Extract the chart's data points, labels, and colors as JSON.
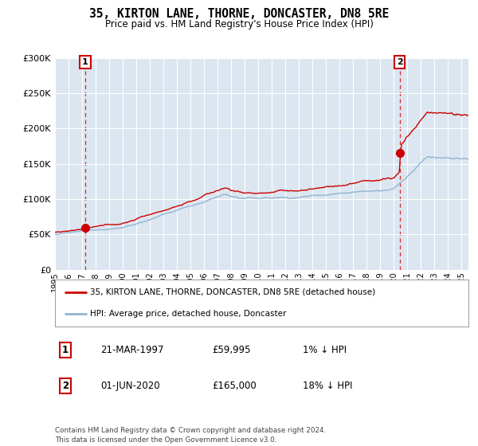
{
  "title": "35, KIRTON LANE, THORNE, DONCASTER, DN8 5RE",
  "subtitle": "Price paid vs. HM Land Registry's House Price Index (HPI)",
  "legend_line1": "35, KIRTON LANE, THORNE, DONCASTER, DN8 5RE (detached house)",
  "legend_line2": "HPI: Average price, detached house, Doncaster",
  "annotation1_label": "1",
  "annotation1_date": "21-MAR-1997",
  "annotation1_price": "£59,995",
  "annotation1_hpi": "1% ↓ HPI",
  "annotation2_label": "2",
  "annotation2_date": "01-JUN-2020",
  "annotation2_price": "£165,000",
  "annotation2_hpi": "18% ↓ HPI",
  "footer": "Contains HM Land Registry data © Crown copyright and database right 2024.\nThis data is licensed under the Open Government Licence v3.0.",
  "bg_color": "#dce6f0",
  "grid_color": "#ffffff",
  "sale1_x": 1997.23,
  "sale1_y": 59995,
  "sale2_x": 2020.42,
  "sale2_y": 165000,
  "ylim": [
    0,
    300000
  ],
  "xlim_start": 1995.0,
  "xlim_end": 2025.5
}
